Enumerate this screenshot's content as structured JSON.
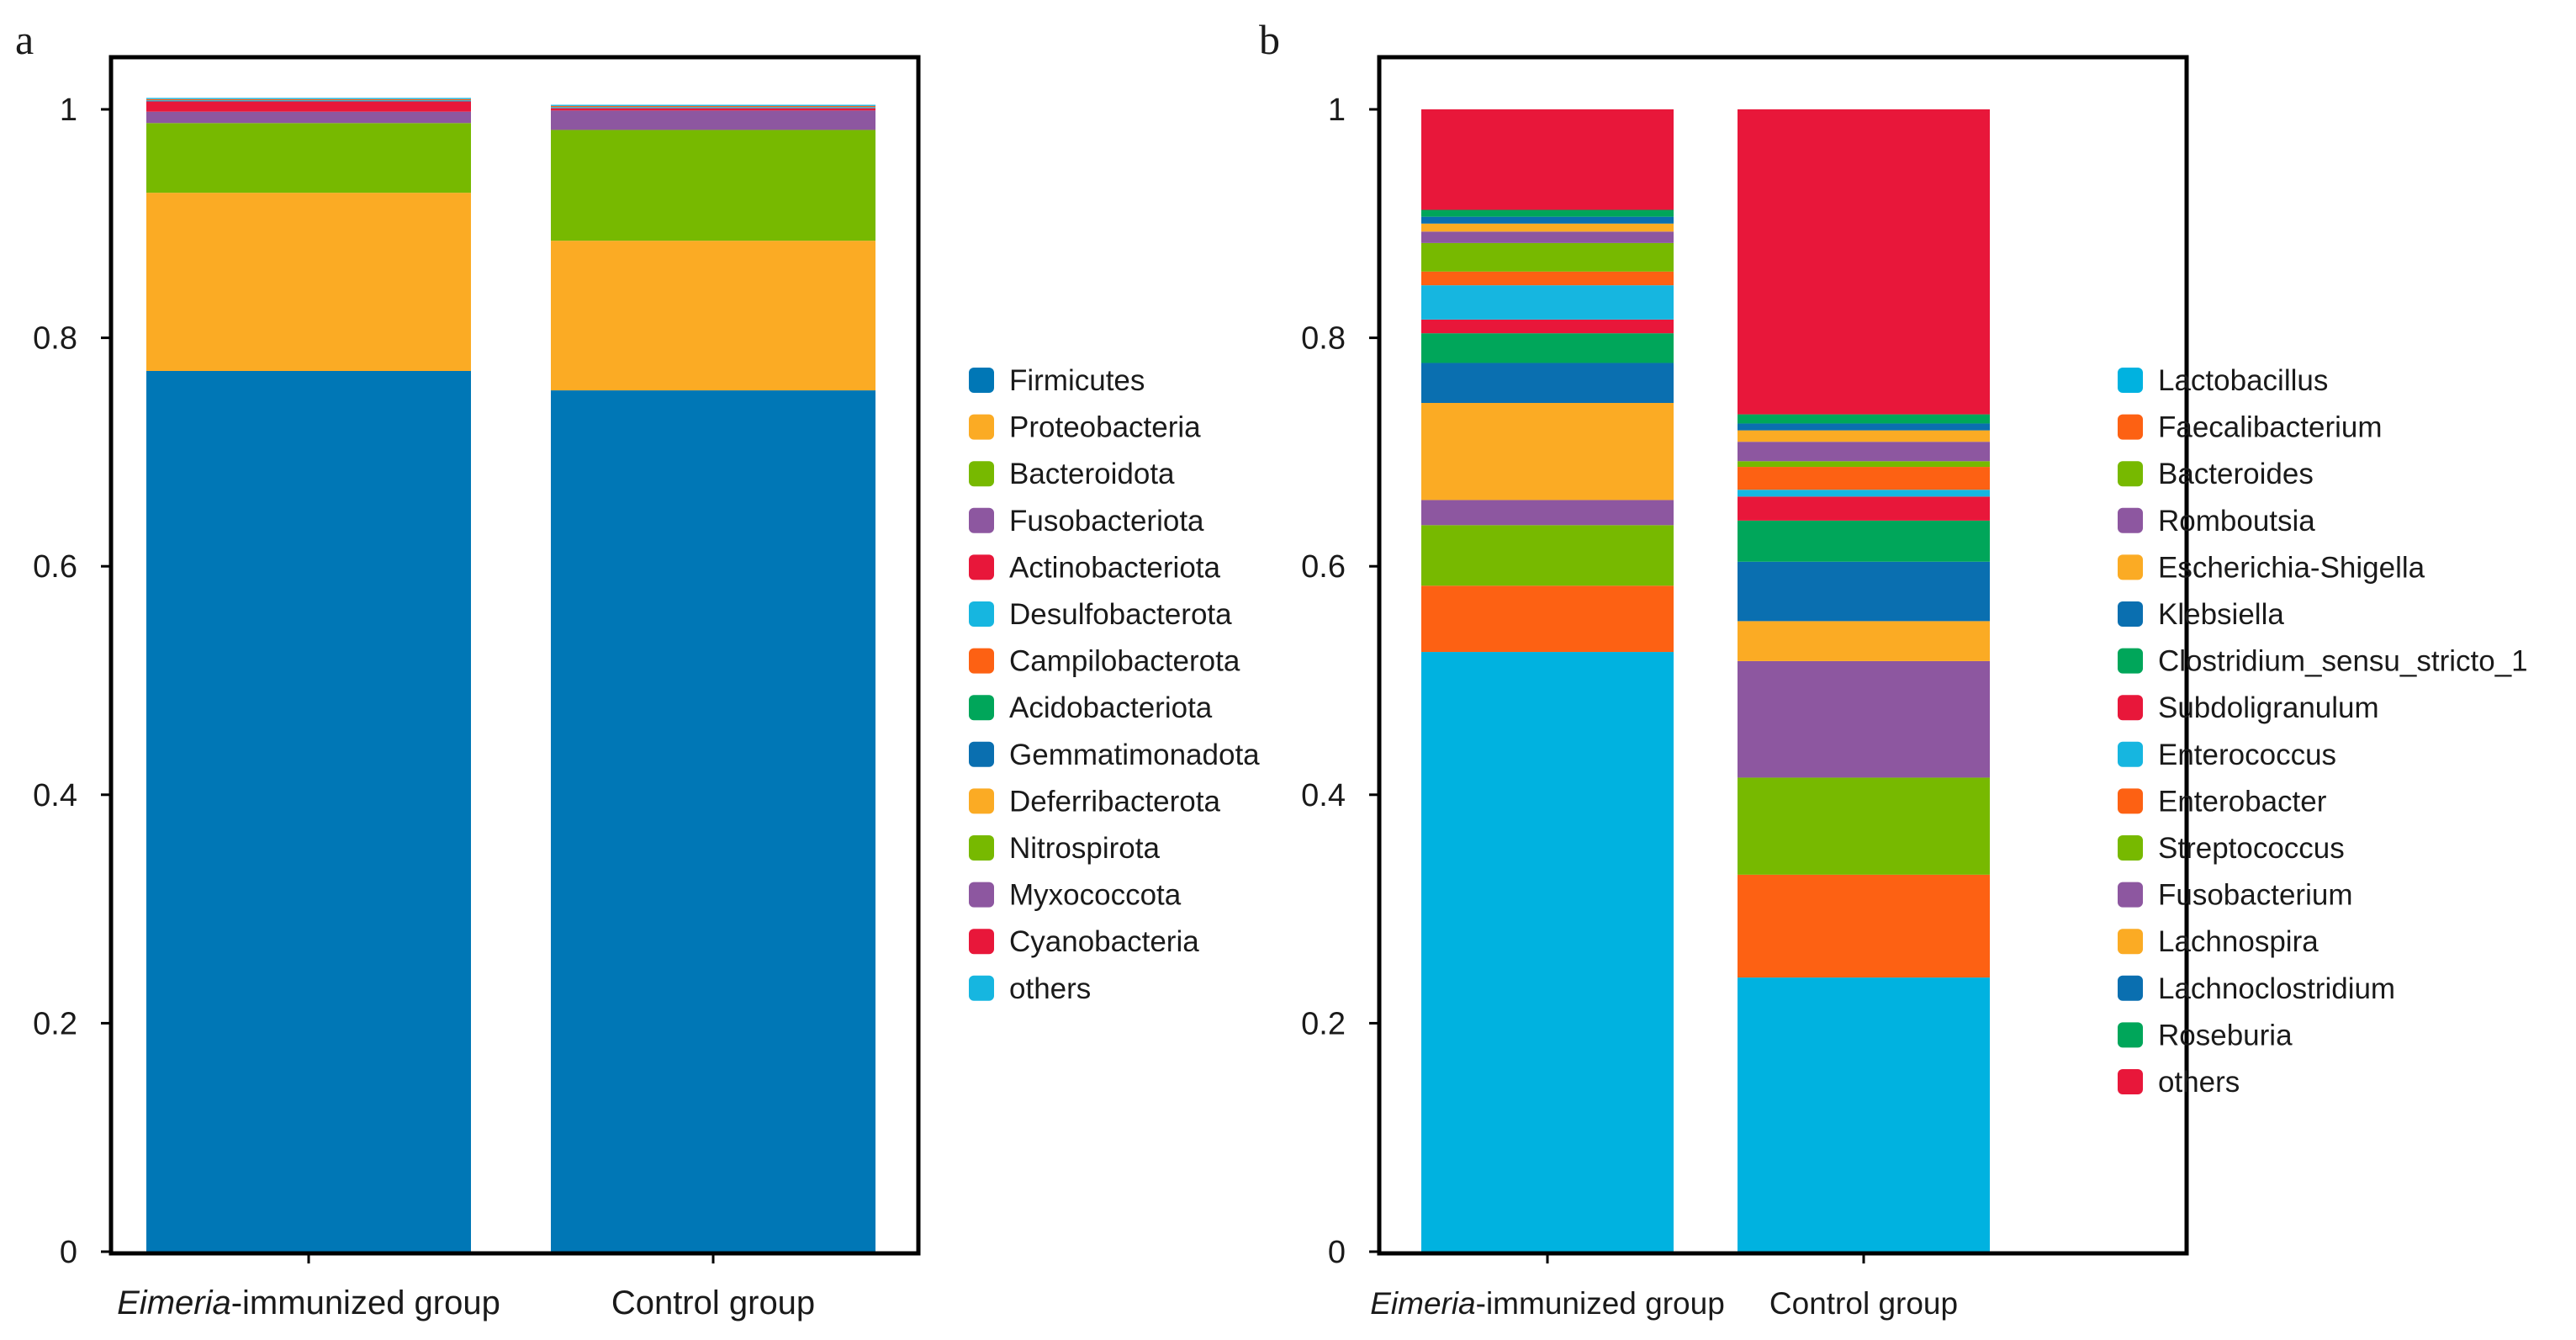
{
  "panels": [
    {
      "letter": "a",
      "chart_data": {
        "type": "bar",
        "stacked": true,
        "categories": [
          {
            "italic": "Eimeria",
            "rest": "-immunized group"
          },
          {
            "italic": "",
            "rest": "Control group"
          }
        ],
        "ylim": [
          0,
          1
        ],
        "yticks": [
          "0",
          "0.2",
          "0.4",
          "0.6",
          "0.8",
          "1"
        ],
        "series": [
          {
            "name": "Firmicutes",
            "color": "#0077b6",
            "values": [
              0.771,
              0.754
            ]
          },
          {
            "name": "Proteobacteria",
            "color": "#fbab24",
            "values": [
              0.156,
              0.131
            ]
          },
          {
            "name": "Bacteroidota",
            "color": "#77b900",
            "values": [
              0.061,
              0.097
            ]
          },
          {
            "name": "Fusobacteriota",
            "color": "#8d57a0",
            "values": [
              0.01,
              0.017
            ]
          },
          {
            "name": "Actinobacteriota",
            "color": "#e8173a",
            "values": [
              0.009,
              0.002
            ]
          },
          {
            "name": "Desulfobacterota",
            "color": "#16b6e0",
            "values": [
              0.001,
              0.001
            ]
          },
          {
            "name": "Campilobacterota",
            "color": "#fd6113",
            "values": [
              0.001,
              0.001
            ]
          },
          {
            "name": "Acidobacteriota",
            "color": "#00a65a",
            "values": [
              0.0,
              0.0
            ]
          },
          {
            "name": "Gemmatimonadota",
            "color": "#0a6fb0",
            "values": [
              0.0,
              0.0
            ]
          },
          {
            "name": "Deferribacterota",
            "color": "#fbab24",
            "values": [
              0.0,
              0.0
            ]
          },
          {
            "name": "Nitrospirota",
            "color": "#77b900",
            "values": [
              0.0,
              0.0
            ]
          },
          {
            "name": "Myxococcota",
            "color": "#8d57a0",
            "values": [
              0.0,
              0.0
            ]
          },
          {
            "name": "Cyanobacteria",
            "color": "#e8173a",
            "values": [
              0.0,
              0.0
            ]
          },
          {
            "name": "others",
            "color": "#16b6e0",
            "values": [
              0.001,
              0.001
            ]
          }
        ]
      }
    },
    {
      "letter": "b",
      "chart_data": {
        "type": "bar",
        "stacked": true,
        "categories": [
          {
            "italic": "Eimeria",
            "rest": "-immunized group"
          },
          {
            "italic": "",
            "rest": "Control group"
          }
        ],
        "ylim": [
          0,
          1
        ],
        "yticks": [
          "0",
          "0.2",
          "0.4",
          "0.6",
          "0.8",
          "1"
        ],
        "series": [
          {
            "name": "Lactobacillus",
            "color": "#00b2e0",
            "values": [
              0.525,
              0.24
            ]
          },
          {
            "name": "Faecalibacterium",
            "color": "#fd6113",
            "values": [
              0.058,
              0.09
            ]
          },
          {
            "name": "Bacteroides",
            "color": "#77b900",
            "values": [
              0.053,
              0.085
            ]
          },
          {
            "name": "Romboutsia",
            "color": "#8d57a0",
            "values": [
              0.022,
              0.102
            ]
          },
          {
            "name": "Escherichia-Shigella",
            "color": "#fbab24",
            "values": [
              0.085,
              0.035
            ]
          },
          {
            "name": "Klebsiella",
            "color": "#0a6fb0",
            "values": [
              0.035,
              0.052
            ]
          },
          {
            "name": "Clostridium_sensu_stricto_1",
            "color": "#00a65a",
            "values": [
              0.026,
              0.036
            ]
          },
          {
            "name": "Subdoligranulum",
            "color": "#e8173a",
            "values": [
              0.012,
              0.021
            ]
          },
          {
            "name": "Enterococcus",
            "color": "#16b6e0",
            "values": [
              0.03,
              0.006
            ]
          },
          {
            "name": "Enterobacter",
            "color": "#fd6113",
            "values": [
              0.012,
              0.02
            ]
          },
          {
            "name": "Streptococcus",
            "color": "#77b900",
            "values": [
              0.025,
              0.005
            ]
          },
          {
            "name": "Fusobacterium",
            "color": "#8d57a0",
            "values": [
              0.01,
              0.017
            ]
          },
          {
            "name": "Lachnospira",
            "color": "#fbab24",
            "values": [
              0.007,
              0.01
            ]
          },
          {
            "name": "Lachnoclostridium",
            "color": "#0a6fb0",
            "values": [
              0.006,
              0.006
            ]
          },
          {
            "name": "Roseburia",
            "color": "#00a65a",
            "values": [
              0.006,
              0.008
            ]
          },
          {
            "name": "others",
            "color": "#e8173a",
            "values": [
              0.088,
              0.267
            ]
          }
        ]
      }
    }
  ]
}
